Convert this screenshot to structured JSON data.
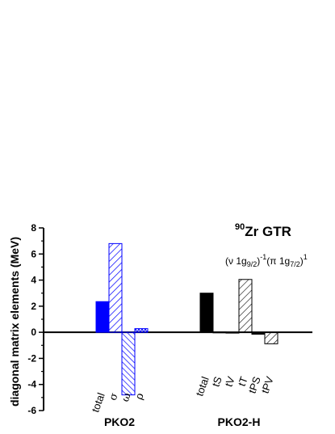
{
  "chart_data": {
    "type": "bar",
    "ylabel": "diagonal matrix elements (MeV)",
    "ylim": [
      -6,
      8
    ],
    "yticks": [
      "-6",
      "-4",
      "-2",
      "0",
      "2",
      "4",
      "6",
      "8"
    ],
    "annotation": {
      "sup_mass": "90",
      "title": "Zr GTR",
      "config": [
        "(ν 1g",
        "9/2",
        ")",
        "-1",
        "(π 1g",
        "7/2",
        ")",
        "1"
      ]
    },
    "groups": [
      {
        "name": "PKO2",
        "color": "#0000ff",
        "categories": [
          "total",
          "σ",
          "ω",
          "ρ"
        ],
        "values": [
          2.35,
          6.8,
          -4.8,
          0.28
        ],
        "patterns": [
          "solid",
          "hatch-diag",
          "hatch-diag-dense",
          "crosshatch"
        ]
      },
      {
        "name": "PKO2-H",
        "color": "#000000",
        "categories": [
          "total",
          "tS",
          "tV",
          "tT",
          "tPS",
          "tPV"
        ],
        "values": [
          3.0,
          0.02,
          -0.05,
          4.05,
          -0.15,
          -0.88
        ],
        "patterns": [
          "solid",
          "solid",
          "solid",
          "hatch-diag",
          "solid",
          "hatch-diag"
        ]
      }
    ]
  }
}
